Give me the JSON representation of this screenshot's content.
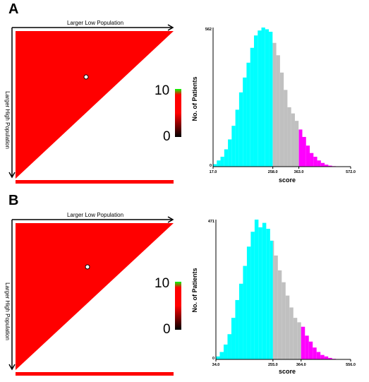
{
  "chart_data": [
    {
      "panel_label": "A",
      "heatmap": {
        "type": "heatmap",
        "top_axis_label": "Larger Low Population",
        "left_axis_label": "Larger High Population",
        "fill_color": "#ff0000",
        "scale": {
          "max_label": "10",
          "min_label": "0",
          "max": 10,
          "min": 0,
          "colors": [
            "#000000",
            "#ff0000",
            "#00ff00"
          ]
        }
      },
      "histogram": {
        "type": "bar",
        "xlabel": "score",
        "ylabel": "No. of Patients",
        "ymax_label": "562",
        "ymax": 562,
        "xlim": [
          17,
          572
        ],
        "x_tick_labels": [
          "17.0",
          "258.0",
          "363.0",
          "572.0"
        ],
        "x_ticks": [
          17,
          258,
          363,
          572
        ],
        "colors": {
          "low": "#00ffff",
          "mid": "#c0c0c0",
          "high": "#ff00ff"
        },
        "segments": {
          "low": [
            17,
            258
          ],
          "mid": [
            258,
            363
          ],
          "high": [
            363,
            572
          ]
        },
        "bin_width": 15,
        "values": [
          10,
          25,
          40,
          70,
          110,
          165,
          230,
          300,
          360,
          420,
          480,
          530,
          550,
          562,
          555,
          545,
          500,
          450,
          380,
          310,
          240,
          215,
          185,
          150,
          120,
          85,
          55,
          40,
          25,
          15,
          8,
          4,
          2,
          1,
          0,
          0,
          0
        ]
      }
    },
    {
      "panel_label": "B",
      "heatmap": {
        "type": "heatmap",
        "top_axis_label": "Larger Low Population",
        "left_axis_label": "Larger High Population",
        "fill_color": "#ff0000",
        "scale": {
          "max_label": "10",
          "min_label": "0",
          "max": 10,
          "min": 0,
          "colors": [
            "#000000",
            "#ff0000",
            "#00ff00"
          ]
        }
      },
      "histogram": {
        "type": "bar",
        "xlabel": "score",
        "ylabel": "No. of Patients",
        "ymax_label": "471",
        "ymax": 471,
        "xlim": [
          34,
          556
        ],
        "x_tick_labels": [
          "34.0",
          "255.0",
          "364.0",
          "556.0"
        ],
        "x_ticks": [
          34,
          255,
          364,
          556
        ],
        "colors": {
          "low": "#00ffff",
          "mid": "#c0c0c0",
          "high": "#ff00ff"
        },
        "segments": {
          "low": [
            34,
            255
          ],
          "mid": [
            255,
            364
          ],
          "high": [
            364,
            556
          ]
        },
        "bin_width": 15,
        "values": [
          10,
          25,
          50,
          85,
          140,
          200,
          255,
          315,
          380,
          430,
          471,
          445,
          460,
          440,
          400,
          350,
          300,
          260,
          215,
          175,
          140,
          125,
          110,
          80,
          60,
          40,
          25,
          15,
          10,
          5,
          2,
          1,
          0,
          0,
          0
        ]
      }
    }
  ]
}
